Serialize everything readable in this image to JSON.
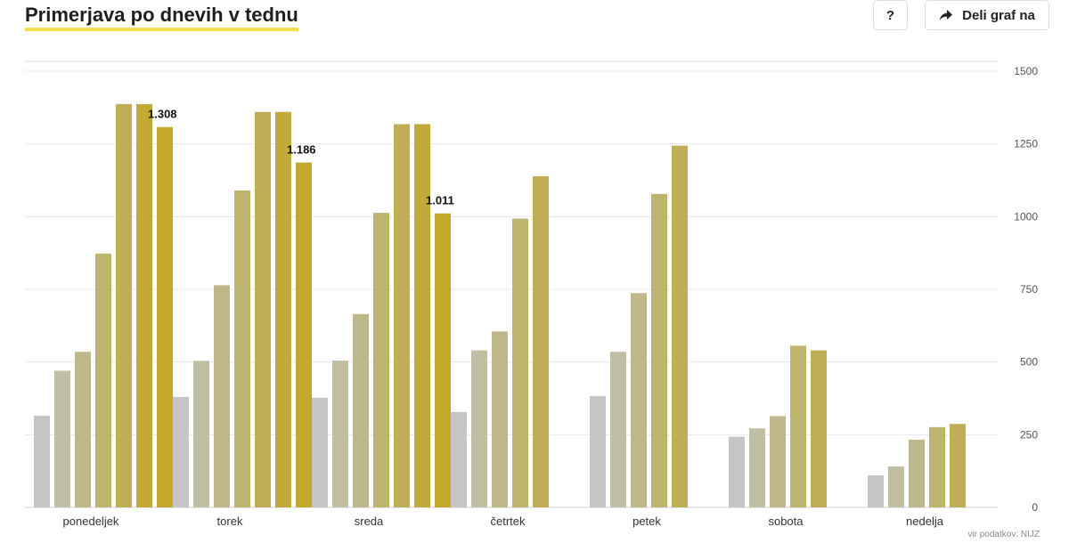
{
  "header": {
    "title": "Primerjava po dnevih v tednu",
    "help_label": "?",
    "share_label": "Deli graf na",
    "share_icon": "share-arrow-icon"
  },
  "source_label": "vir podatkov: NIJZ",
  "colors": {
    "title_underline": "#f2dd4e",
    "series": [
      "#c5c5c5",
      "#c0bfa3",
      "#bdb78a",
      "#bdb470",
      "#bfae55",
      "#c2aa3a",
      "#c3a82c"
    ],
    "grid": "#e8e8e8",
    "axis_text": "#555555"
  },
  "chart_data": {
    "type": "bar",
    "categories": [
      "ponedeljek",
      "torek",
      "sreda",
      "četrtek",
      "petek",
      "sobota",
      "nedelja"
    ],
    "series": [
      {
        "values": [
          315,
          380,
          377,
          328,
          383,
          243,
          110
        ]
      },
      {
        "values": [
          470,
          504,
          505,
          540,
          535,
          272,
          141
        ]
      },
      {
        "values": [
          535,
          764,
          665,
          605,
          737,
          314,
          233
        ]
      },
      {
        "values": [
          873,
          1090,
          1013,
          993,
          1078,
          556,
          276
        ]
      },
      {
        "values": [
          1387,
          1360,
          1318,
          1139,
          1244,
          540,
          287
        ]
      },
      {
        "values": [
          1387,
          1360,
          1318,
          null,
          null,
          null,
          null
        ]
      },
      {
        "values": [
          1308,
          1186,
          1011,
          null,
          null,
          null,
          null
        ]
      }
    ],
    "data_labels": [
      {
        "category": "ponedeljek",
        "text": "1.308"
      },
      {
        "category": "torek",
        "text": "1.186"
      },
      {
        "category": "sreda",
        "text": "1.011"
      }
    ],
    "ylim": [
      0,
      1500
    ],
    "yticks": [
      0,
      250,
      500,
      750,
      1000,
      1250,
      1500
    ],
    "ytick_labels": [
      "0",
      "250",
      "500",
      "750",
      "1000",
      "1250",
      "1500"
    ],
    "y_axis_side": "right",
    "grid": true,
    "legend": "none"
  }
}
